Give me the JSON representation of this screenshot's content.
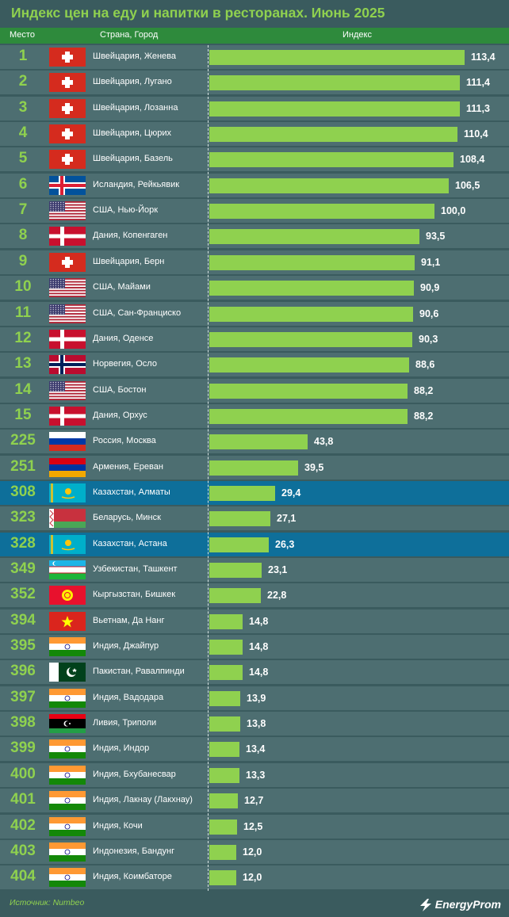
{
  "title": "Индекс цен на еду и напитки в ресторанах. Июнь 2025",
  "header": {
    "col_rank": "Место",
    "col_country": "Страна, Город",
    "col_index": "Индекс"
  },
  "source": "Источник: Numbeo",
  "logo": "EnergyProm",
  "colors": {
    "background": "#3a5b5e",
    "row": "#4d6e71",
    "highlight": "#0e6f9a",
    "bar": "#8fd14f",
    "header": "#2e8a3c"
  },
  "chart_data": {
    "type": "bar",
    "orientation": "horizontal",
    "title": "Индекс цен на еду и напитки в ресторанах. Июнь 2025",
    "xlim": [
      0,
      113.4
    ],
    "rows": [
      {
        "rank": "1",
        "country": "Швейцария, Женева",
        "flag": "ch",
        "value": 113.4,
        "label": "113,4"
      },
      {
        "rank": "2",
        "country": "Швейцария, Лугано",
        "flag": "ch",
        "value": 111.4,
        "label": "111,4"
      },
      {
        "rank": "3",
        "country": "Швейцария, Лозанна",
        "flag": "ch",
        "value": 111.3,
        "label": "111,3"
      },
      {
        "rank": "4",
        "country": "Швейцария, Цюрих",
        "flag": "ch",
        "value": 110.4,
        "label": "110,4"
      },
      {
        "rank": "5",
        "country": "Швейцария, Базель",
        "flag": "ch",
        "value": 108.4,
        "label": "108,4"
      },
      {
        "rank": "6",
        "country": "Исландия, Рейкьявик",
        "flag": "is",
        "value": 106.5,
        "label": "106,5"
      },
      {
        "rank": "7",
        "country": "США, Нью-Йорк",
        "flag": "us",
        "value": 100.0,
        "label": "100,0"
      },
      {
        "rank": "8",
        "country": "Дания, Копенгаген",
        "flag": "dk",
        "value": 93.5,
        "label": "93,5"
      },
      {
        "rank": "9",
        "country": "Швейцария, Берн",
        "flag": "ch",
        "value": 91.1,
        "label": "91,1"
      },
      {
        "rank": "10",
        "country": "США, Майами",
        "flag": "us",
        "value": 90.9,
        "label": "90,9"
      },
      {
        "rank": "11",
        "country": "США, Сан-Франциско",
        "flag": "us",
        "value": 90.6,
        "label": "90,6"
      },
      {
        "rank": "12",
        "country": "Дания, Оденсе",
        "flag": "dk",
        "value": 90.3,
        "label": "90,3"
      },
      {
        "rank": "13",
        "country": "Норвегия, Осло",
        "flag": "no",
        "value": 88.6,
        "label": "88,6"
      },
      {
        "rank": "14",
        "country": "США, Бостон",
        "flag": "us",
        "value": 88.2,
        "label": "88,2"
      },
      {
        "rank": "15",
        "country": "Дания, Орхус",
        "flag": "dk",
        "value": 88.2,
        "label": "88,2"
      },
      {
        "rank": "225",
        "country": "Россия, Москва",
        "flag": "ru",
        "value": 43.8,
        "label": "43,8"
      },
      {
        "rank": "251",
        "country": "Армения, Ереван",
        "flag": "am",
        "value": 39.5,
        "label": "39,5"
      },
      {
        "rank": "308",
        "country": "Казахстан, Алматы",
        "flag": "kz",
        "value": 29.4,
        "label": "29,4",
        "highlight": true
      },
      {
        "rank": "323",
        "country": "Беларусь, Минск",
        "flag": "by",
        "value": 27.1,
        "label": "27,1"
      },
      {
        "rank": "328",
        "country": "Казахстан, Астана",
        "flag": "kz",
        "value": 26.3,
        "label": "26,3",
        "highlight": true
      },
      {
        "rank": "349",
        "country": "Узбекистан, Ташкент",
        "flag": "uz",
        "value": 23.1,
        "label": "23,1"
      },
      {
        "rank": "352",
        "country": "Кыргызстан, Бишкек",
        "flag": "kg",
        "value": 22.8,
        "label": "22,8"
      },
      {
        "rank": "394",
        "country": "Вьетнам, Да Нанг",
        "flag": "vn",
        "value": 14.8,
        "label": "14,8"
      },
      {
        "rank": "395",
        "country": "Индия, Джайпур",
        "flag": "in",
        "value": 14.8,
        "label": "14,8"
      },
      {
        "rank": "396",
        "country": "Пакистан, Равалпинди",
        "flag": "pk",
        "value": 14.8,
        "label": "14,8"
      },
      {
        "rank": "397",
        "country": "Индия, Вадодара",
        "flag": "in",
        "value": 13.9,
        "label": "13,9"
      },
      {
        "rank": "398",
        "country": "Ливия, Триполи",
        "flag": "ly",
        "value": 13.8,
        "label": "13,8"
      },
      {
        "rank": "399",
        "country": "Индия, Индор",
        "flag": "in",
        "value": 13.4,
        "label": "13,4"
      },
      {
        "rank": "400",
        "country": "Индия, Бхубанесвар",
        "flag": "in",
        "value": 13.3,
        "label": "13,3"
      },
      {
        "rank": "401",
        "country": "Индия, Лакнау (Лакхнау)",
        "flag": "in",
        "value": 12.7,
        "label": "12,7"
      },
      {
        "rank": "402",
        "country": "Индия, Кочи",
        "flag": "in",
        "value": 12.5,
        "label": "12,5"
      },
      {
        "rank": "403",
        "country": "Индонезия, Бандунг",
        "flag": "in",
        "value": 12.0,
        "label": "12,0"
      },
      {
        "rank": "404",
        "country": "Индия, Коимбаторе",
        "flag": "in",
        "value": 12.0,
        "label": "12,0"
      }
    ]
  }
}
